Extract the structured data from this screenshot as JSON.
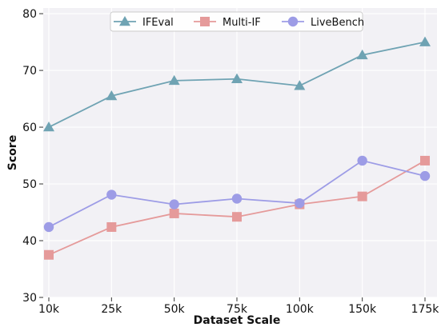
{
  "chart_data": {
    "type": "line",
    "title": "",
    "xlabel": "Dataset Scale",
    "ylabel": "Score",
    "categories": [
      "10k",
      "25k",
      "50k",
      "75k",
      "100k",
      "150k",
      "175k"
    ],
    "ylim": [
      30,
      81
    ],
    "yticks": [
      30,
      40,
      50,
      60,
      70,
      80
    ],
    "grid": true,
    "legend_position": "top-center",
    "series": [
      {
        "name": "IFEval",
        "marker": "triangle",
        "color": "#6fa3b3",
        "values": [
          60.0,
          65.5,
          68.2,
          68.5,
          67.3,
          72.7,
          75.0
        ]
      },
      {
        "name": "Multi-IF",
        "marker": "square",
        "color": "#e59a9a",
        "values": [
          37.5,
          42.4,
          44.8,
          44.2,
          46.4,
          47.8,
          54.1
        ]
      },
      {
        "name": "LiveBench",
        "marker": "circle",
        "color": "#9d9ce6",
        "values": [
          42.4,
          48.1,
          46.4,
          47.4,
          46.6,
          54.1,
          51.4
        ]
      }
    ]
  }
}
